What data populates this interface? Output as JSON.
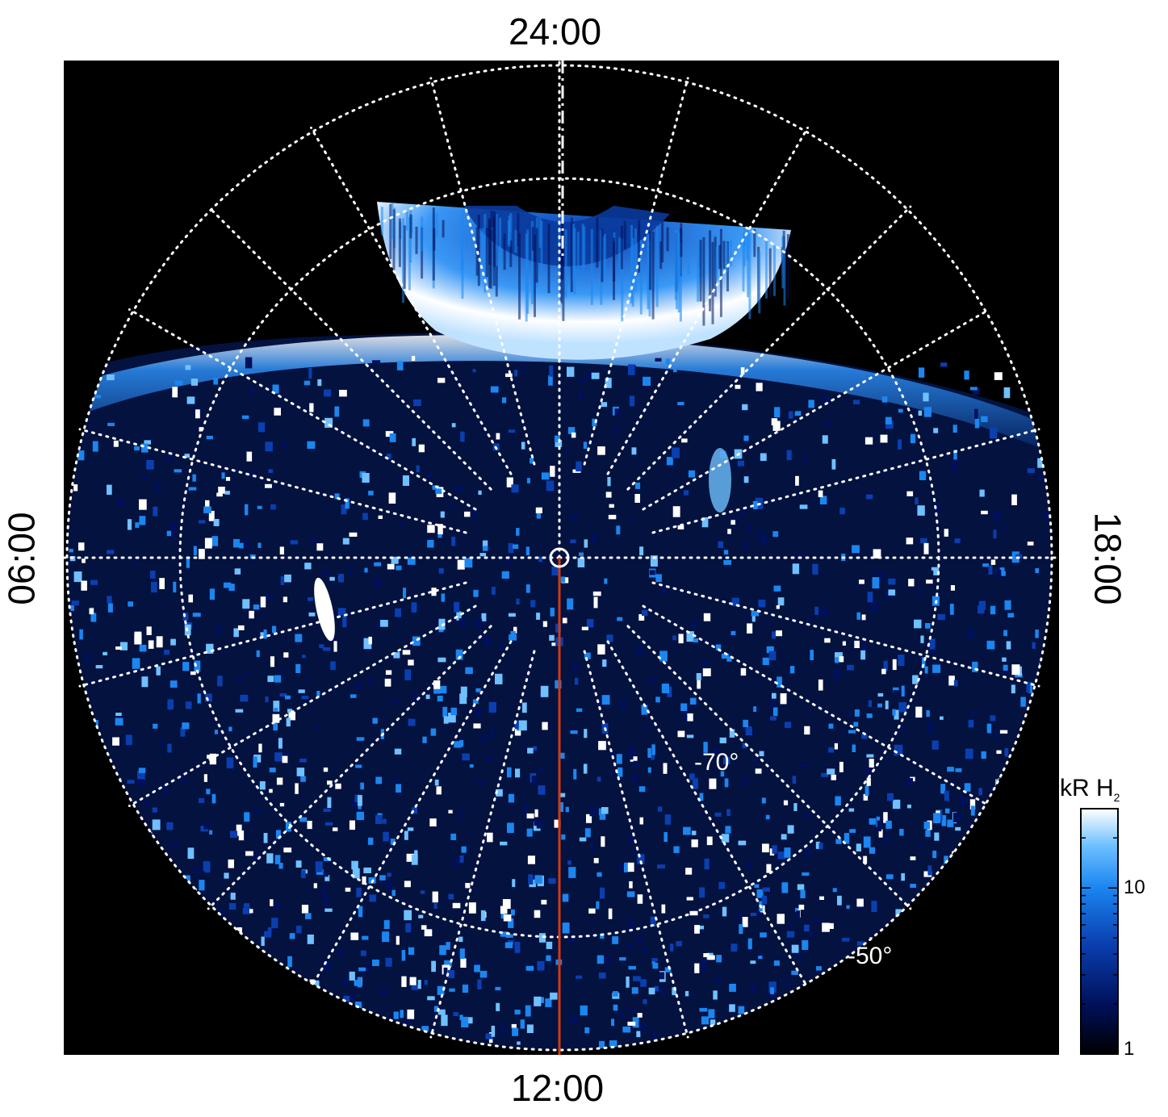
{
  "figure": {
    "local_time_labels": {
      "top": "24:00",
      "bottom": "12:00",
      "left": "06:00",
      "right": "18:00"
    },
    "latitude_labels": [
      "-70°",
      "-50°"
    ],
    "colorbar": {
      "title": "kR H",
      "title_subscript": "2",
      "scale": "log",
      "range": [
        1,
        30
      ],
      "tick_labels": [
        "10",
        "1"
      ],
      "colors": [
        "#000000",
        "#00105a",
        "#0a3fb0",
        "#1b86f0",
        "#6fc0ff",
        "#ffffff"
      ]
    },
    "background_color": "#000000",
    "grid_color": "#ffffff",
    "meridian_line_color": "#d23a10"
  }
}
